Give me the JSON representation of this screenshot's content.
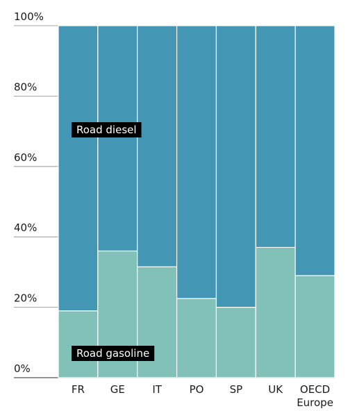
{
  "chart_data": {
    "type": "bar",
    "stacked": true,
    "normalized_percent": true,
    "categories": [
      "FR",
      "GE",
      "IT",
      "PO",
      "SP",
      "UK",
      "OECD Europe"
    ],
    "series": [
      {
        "name": "Road gasoline",
        "color": "#82c1b7",
        "values": [
          19,
          36,
          31.5,
          22.5,
          20,
          37,
          29
        ]
      },
      {
        "name": "Road diesel",
        "color": "#4396b4",
        "values": [
          81,
          64,
          68.5,
          77.5,
          80,
          63,
          71
        ]
      }
    ],
    "yticks": [
      "0%",
      "20%",
      "40%",
      "60%",
      "80%",
      "100%"
    ],
    "ylim": [
      0,
      100
    ],
    "title": "",
    "xlabel": "",
    "ylabel": "",
    "grid": true,
    "legend": "inline-labels"
  },
  "annotations": {
    "diesel_label": "Road diesel",
    "gasoline_label": "Road gasoline"
  },
  "colors": {
    "annotation_bg": "#000000",
    "grid": "#888888",
    "bar_separator": "#ffffff"
  }
}
